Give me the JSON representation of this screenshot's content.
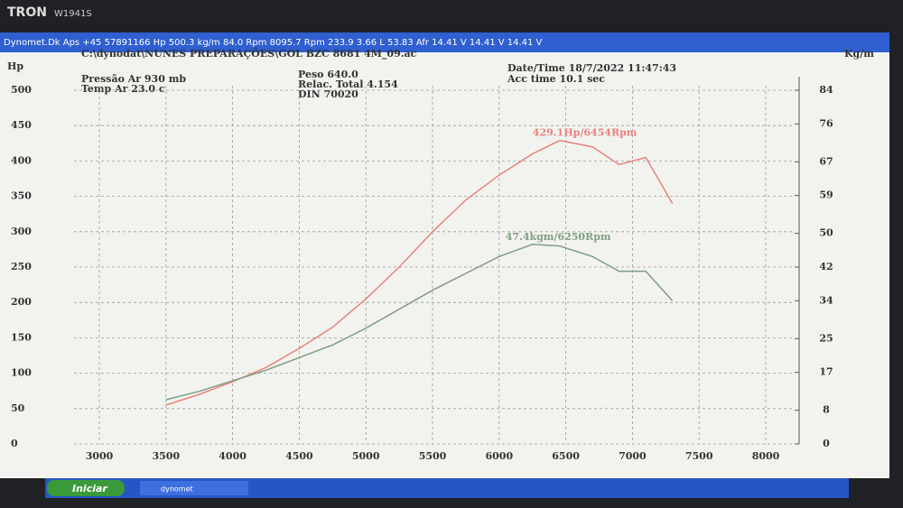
{
  "monitor": {
    "brand": "TRON",
    "model": "W1941S"
  },
  "window_title": "Dynomet.Dk Aps +45 57891166 Hp 500.3 kg/m 84.0 Rpm 8095.7 Rpm 233.9  3.66 L 53.83 Afr 14.41 V 14.41 V 14.41 V",
  "header": {
    "file": "C:\\dynodat\\NUNES PREPARAÇÕES\\GOL BZC 8681 4M_09.ac",
    "pressure": "Pressão Ar   930 mb",
    "temp": "Temp Ar    23.0 c",
    "weight": "Peso     640.0",
    "ratio": "Relac. Total 4.154",
    "norm": "DIN 70020",
    "datetime": "Date/Time   18/7/2022 11:47:43",
    "acc_time": "Acc time   10.1 sec"
  },
  "taskbar": {
    "start": "Iniciar",
    "app": "dynomet"
  },
  "chart_data": {
    "type": "line",
    "y_label": "Hp",
    "y2_label": "Kg/m",
    "x": [
      3500,
      3750,
      4000,
      4250,
      4500,
      4750,
      5000,
      5250,
      5500,
      5750,
      6000,
      6250,
      6454,
      6700,
      6900,
      7100,
      7300
    ],
    "series": [
      {
        "name": "Hp",
        "color": "#e8837f",
        "values": [
          55,
          70,
          88,
          108,
          135,
          165,
          205,
          250,
          300,
          345,
          380,
          410,
          429,
          420,
          395,
          405,
          340
        ]
      },
      {
        "name": "Kg/m",
        "color": "#7f9e84",
        "axis": "y2",
        "values": [
          10.5,
          12.5,
          15,
          17.5,
          20.5,
          23.5,
          27.5,
          32,
          36.5,
          40.5,
          44.5,
          47.4,
          47,
          44.5,
          41,
          41,
          34
        ]
      }
    ],
    "annotations": [
      "429.1Hp/6454Rpm",
      "47.4kgm/6250Rpm"
    ],
    "xlim": [
      3000,
      8000
    ],
    "xticks": [
      3000,
      3500,
      4000,
      4500,
      5000,
      5500,
      6000,
      6500,
      7000,
      7500,
      8000
    ],
    "ylim": [
      0,
      500
    ],
    "yticks": [
      0,
      50,
      100,
      150,
      200,
      250,
      300,
      350,
      400,
      450,
      500
    ],
    "y2lim": [
      0,
      84
    ],
    "y2ticks": [
      0,
      8,
      17,
      25,
      34,
      42,
      50,
      59,
      67,
      76,
      84
    ],
    "grid": true
  }
}
